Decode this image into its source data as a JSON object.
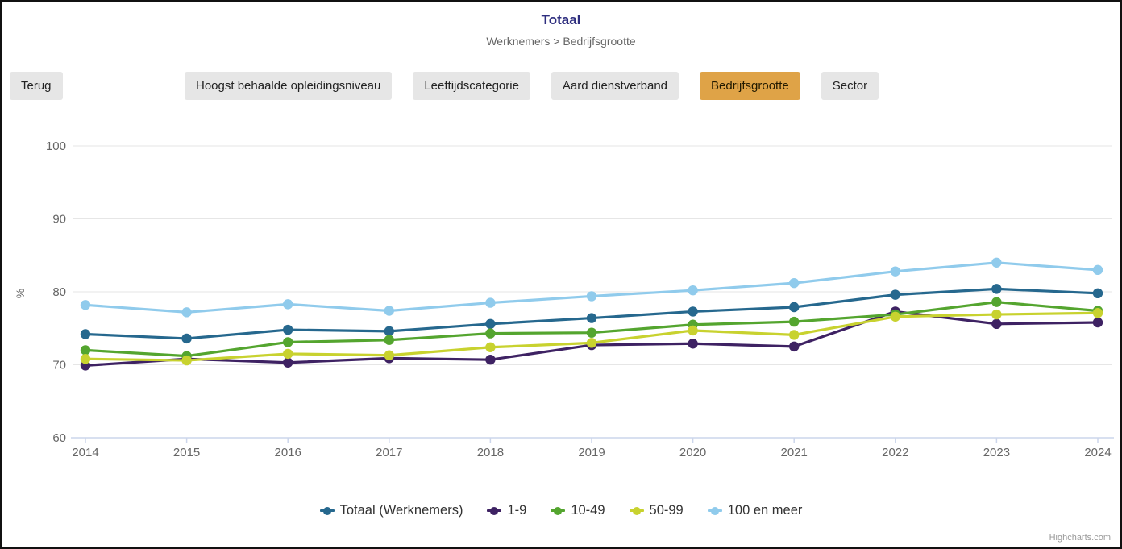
{
  "header": {
    "title": "Totaal",
    "breadcrumb": "Werknemers > Bedrijfsgrootte"
  },
  "toolbar": {
    "back_label": "Terug",
    "buttons": [
      {
        "label": "Hoogst behaalde opleidingsniveau",
        "active": false
      },
      {
        "label": "Leeftijdscategorie",
        "active": false
      },
      {
        "label": "Aard dienstverband",
        "active": false
      },
      {
        "label": "Bedrijfsgrootte",
        "active": true
      },
      {
        "label": "Sector",
        "active": false
      }
    ],
    "active_color": "#dfa347",
    "inactive_color": "#e6e6e6"
  },
  "chart_data": {
    "type": "line",
    "title": "Totaal",
    "subtitle": "Werknemers > Bedrijfsgrootte",
    "xlabel": "",
    "ylabel": "%",
    "ylim": [
      60,
      100
    ],
    "yticks": [
      60,
      70,
      80,
      90,
      100
    ],
    "grid": true,
    "legend_position": "bottom",
    "categories": [
      "2014",
      "2015",
      "2016",
      "2017",
      "2018",
      "2019",
      "2020",
      "2021",
      "2022",
      "2023",
      "2024"
    ],
    "series": [
      {
        "name": "Totaal (Werknemers)",
        "color": "#26688e",
        "values": [
          74.2,
          73.6,
          74.8,
          74.6,
          75.6,
          76.4,
          77.3,
          77.9,
          79.6,
          80.4,
          79.8
        ]
      },
      {
        "name": "1-9",
        "color": "#3e2263",
        "values": [
          69.9,
          70.8,
          70.3,
          70.9,
          70.7,
          72.7,
          72.9,
          72.5,
          77.3,
          75.6,
          75.8
        ]
      },
      {
        "name": "10-49",
        "color": "#54a52f",
        "values": [
          72.0,
          71.2,
          73.1,
          73.4,
          74.3,
          74.4,
          75.5,
          75.9,
          76.9,
          78.6,
          77.4
        ]
      },
      {
        "name": "50-99",
        "color": "#c8d22f",
        "values": [
          70.8,
          70.6,
          71.5,
          71.3,
          72.4,
          73.0,
          74.7,
          74.1,
          76.6,
          76.9,
          77.1
        ]
      },
      {
        "name": "100 en meer",
        "color": "#90cbec",
        "values": [
          78.2,
          77.2,
          78.3,
          77.4,
          78.5,
          79.4,
          80.2,
          81.2,
          82.8,
          84.0,
          83.0
        ]
      }
    ],
    "axis_line_color": "#ccd6eb",
    "grid_color": "#e6e6e6",
    "tick_label_color": "#666666"
  },
  "credits": {
    "label": "Highcharts.com"
  }
}
